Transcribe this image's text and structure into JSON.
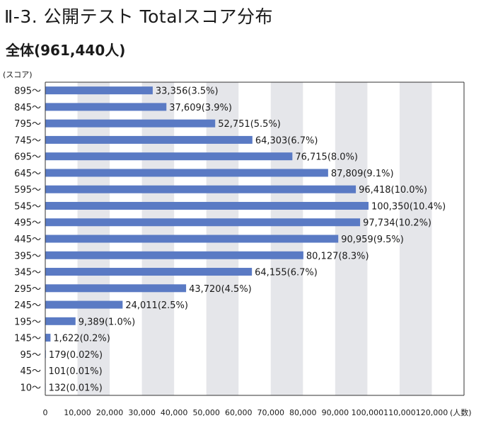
{
  "title": "Ⅱ-3. 公開テスト Totalスコア分布",
  "subtitle": "全体(961,440人)",
  "chart_data": {
    "type": "bar",
    "orientation": "horizontal",
    "y_unit_label": "(スコア)",
    "x_unit_label": "(人数)",
    "categories": [
      "895〜",
      "845〜",
      "795〜",
      "745〜",
      "695〜",
      "645〜",
      "595〜",
      "545〜",
      "495〜",
      "445〜",
      "395〜",
      "345〜",
      "295〜",
      "245〜",
      "195〜",
      "145〜",
      "95〜",
      "45〜",
      "10〜"
    ],
    "values": [
      33356,
      37609,
      52751,
      64303,
      76715,
      87809,
      96418,
      100350,
      97734,
      90959,
      80127,
      64155,
      43720,
      24011,
      9389,
      1622,
      179,
      101,
      132
    ],
    "data_labels": [
      "33,356(3.5%)",
      "37,609(3.9%)",
      "52,751(5.5%)",
      "64,303(6.7%)",
      "76,715(8.0%)",
      "87,809(9.1%)",
      "96,418(10.0%)",
      "100,350(10.4%)",
      "97,734(10.2%)",
      "90,959(9.5%)",
      "80,127(8.3%)",
      "64,155(6.7%)",
      "43,720(4.5%)",
      "24,011(2.5%)",
      "9,389(1.0%)",
      "1,622(0.2%)",
      "179(0.02%)",
      "101(0.01%)",
      "132(0.01%)"
    ],
    "x_ticks": [
      0,
      10000,
      20000,
      30000,
      40000,
      50000,
      60000,
      70000,
      80000,
      90000,
      100000,
      110000,
      120000
    ],
    "x_tick_labels": [
      "0",
      "10,000",
      "20,000",
      "30,000",
      "40,000",
      "50,000",
      "60,000",
      "70,000",
      "80,000",
      "90,000",
      "100,000",
      "110,000",
      "120,000"
    ],
    "xlim": [
      0,
      130000
    ],
    "bar_color": "#5a7ac4",
    "band_color": "#e5e6ea",
    "grid": "alternating vertical bands"
  }
}
